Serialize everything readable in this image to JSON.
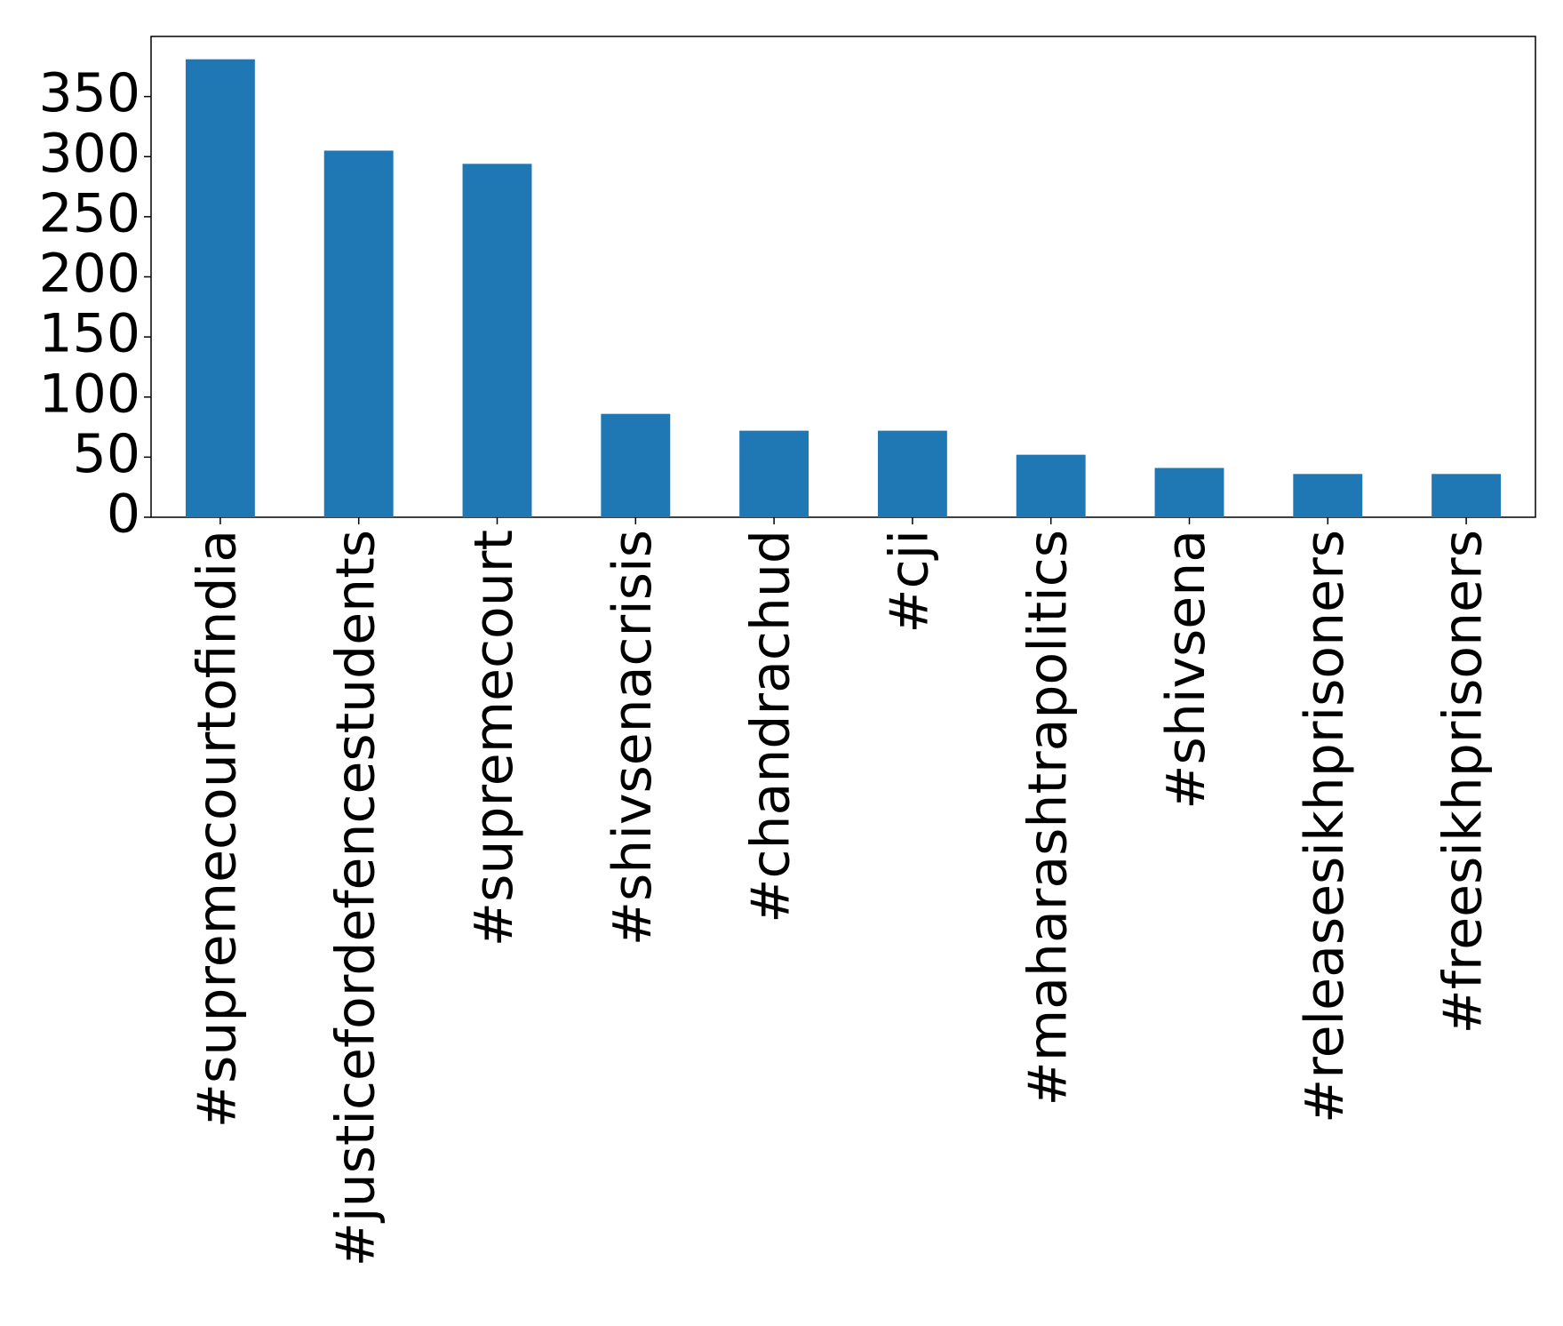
{
  "chart_data": {
    "type": "bar",
    "categories": [
      "#supremecourtofindia",
      "#justicefordefencestudents",
      "#supremecourt",
      "#shivsenacrisis",
      "#chandrachud",
      "#cji",
      "#maharashtrapolitics",
      "#shivsena",
      "#releasesikhprisoners",
      "#freesikhprisoners"
    ],
    "values": [
      381,
      305,
      294,
      86,
      72,
      72,
      52,
      41,
      36,
      36
    ],
    "color": "#1f77b4",
    "ylim": [
      0,
      400
    ],
    "yticks": [
      0,
      50,
      100,
      150,
      200,
      250,
      300,
      350
    ],
    "grid": false
  }
}
